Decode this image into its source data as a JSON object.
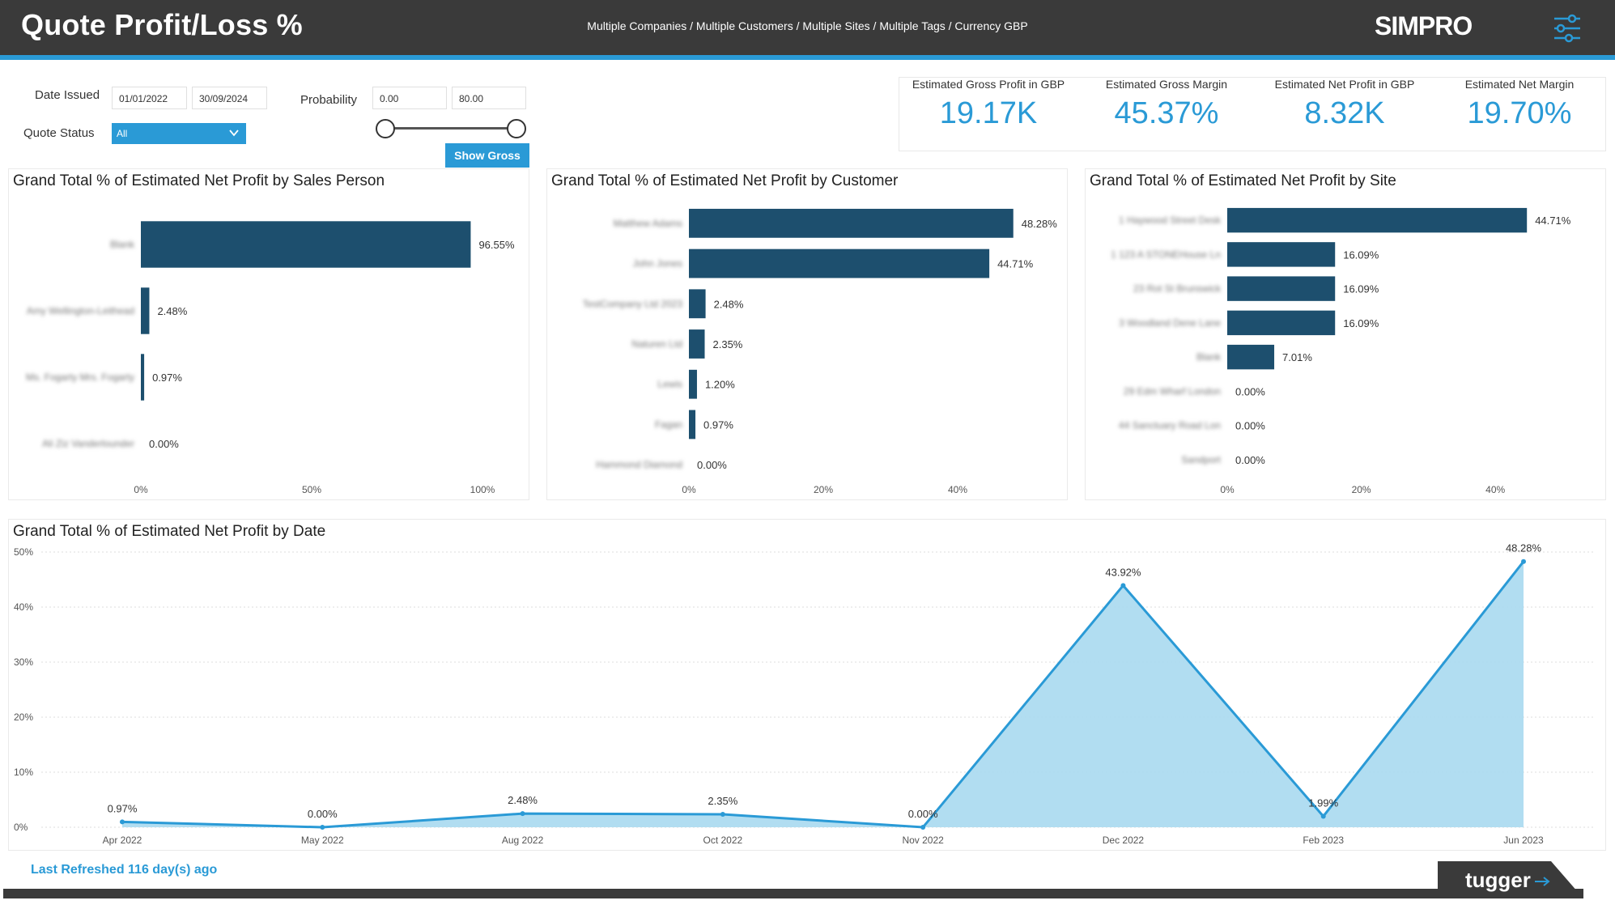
{
  "header": {
    "title": "Quote Profit/Loss %",
    "subtitle": "Multiple Companies / Multiple Customers / Multiple Sites / Multiple Tags / Currency GBP",
    "logo": "SIMPRO",
    "menu_icon": "sliders-menu-icon"
  },
  "filters": {
    "date_issued_label": "Date Issued",
    "date_from": "01/01/2022",
    "date_to": "30/09/2024",
    "probability_label": "Probability",
    "probability_min": "0.00",
    "probability_max": "80.00",
    "quote_status_label": "Quote Status",
    "quote_status_value": "All",
    "show_gross_label": "Show Gross"
  },
  "kpis": [
    {
      "label": "Estimated Gross Profit in GBP",
      "value": "19.17K"
    },
    {
      "label": "Estimated Gross Margin",
      "value": "45.37%"
    },
    {
      "label": "Estimated Net Profit in GBP",
      "value": "8.32K"
    },
    {
      "label": "Estimated Net Margin",
      "value": "19.70%"
    }
  ],
  "chart_data": [
    {
      "type": "bar",
      "title": "Grand Total % of Estimated Net Profit by Sales Person",
      "categories": [
        "Blank",
        "Amy Wellington-Leithead",
        "Ms. Fogarty Mrs. Fogarty",
        "Ali Ziz Vanderlounder"
      ],
      "values": [
        96.55,
        2.48,
        0.97,
        0.0
      ],
      "value_labels": [
        "96.55%",
        "2.48%",
        "0.97%",
        "0.00%"
      ],
      "xticks": [
        "0%",
        "50%",
        "100%"
      ],
      "xlim": [
        0,
        100
      ]
    },
    {
      "type": "bar",
      "title": "Grand Total % of Estimated Net Profit by Customer",
      "categories": [
        "Matthew Adams",
        "John Jones",
        "TestCompany Ltd 2023",
        "Naturen Ltd",
        "Lewis",
        "Fagan",
        "Hammond Diamond"
      ],
      "values": [
        48.28,
        44.71,
        2.48,
        2.35,
        1.2,
        0.97,
        0.0
      ],
      "value_labels": [
        "48.28%",
        "44.71%",
        "2.48%",
        "2.35%",
        "1.20%",
        "0.97%",
        "0.00%"
      ],
      "xticks": [
        "0%",
        "20%",
        "40%"
      ],
      "xlim": [
        0,
        50
      ]
    },
    {
      "type": "bar",
      "title": "Grand Total % of Estimated Net Profit by Site",
      "categories": [
        "1 Haywood Street Desk",
        "1 123 A STONEHouse Ln",
        "23 Rot St Brunswick",
        "3 Woodland Dene Lane",
        "Blank",
        "29 Edm Wharf London",
        "44 Sanctuary Road Lon",
        "Sandport"
      ],
      "values": [
        44.71,
        16.09,
        16.09,
        16.09,
        7.01,
        0.0,
        0.0,
        0.0
      ],
      "value_labels": [
        "44.71%",
        "16.09%",
        "16.09%",
        "16.09%",
        "7.01%",
        "0.00%",
        "0.00%",
        "0.00%"
      ],
      "xticks": [
        "0%",
        "20%",
        "40%"
      ],
      "xlim": [
        0,
        50
      ]
    },
    {
      "type": "area",
      "title": "Grand Total % of Estimated Net Profit by Date",
      "x": [
        "Apr 2022",
        "May 2022",
        "Aug 2022",
        "Oct 2022",
        "Nov 2022",
        "Dec 2022",
        "Feb 2023",
        "Jun 2023"
      ],
      "values": [
        0.97,
        0.0,
        2.48,
        2.35,
        0.0,
        43.92,
        1.99,
        48.28
      ],
      "value_labels": [
        "0.97%",
        "0.00%",
        "2.48%",
        "2.35%",
        "0.00%",
        "43.92%",
        "1.99%",
        "48.28%"
      ],
      "yticks": [
        "0%",
        "10%",
        "20%",
        "30%",
        "40%",
        "50%"
      ],
      "ylim": [
        0,
        50
      ],
      "grid": true
    }
  ],
  "footer": {
    "last_refreshed": "Last Refreshed 116 day(s) ago",
    "brand": "tugger"
  },
  "colors": {
    "header_bg": "#3a3a3a",
    "accent": "#2a9ad6",
    "bar": "#1d4f6e",
    "area_fill": "#a9d9f0"
  }
}
